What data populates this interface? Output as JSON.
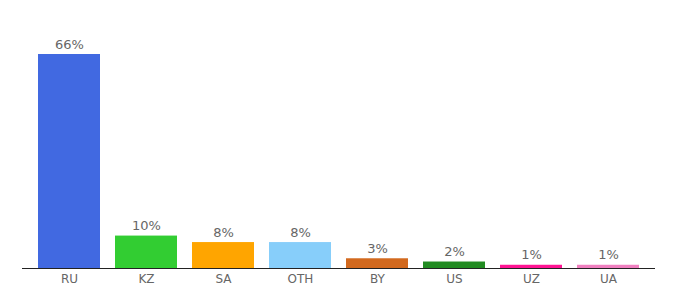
{
  "chart_data": {
    "type": "bar",
    "categories": [
      "RU",
      "KZ",
      "SA",
      "OTH",
      "BY",
      "US",
      "UZ",
      "UA"
    ],
    "values": [
      66,
      10,
      8,
      8,
      3,
      2,
      1,
      1
    ],
    "value_labels": [
      "66%",
      "10%",
      "8%",
      "8%",
      "3%",
      "2%",
      "1%",
      "1%"
    ],
    "colors": [
      "#4169e1",
      "#32cd32",
      "#ffa500",
      "#87cefa",
      "#d2691e",
      "#228b22",
      "#ff1493",
      "#f080c0"
    ],
    "ylim": [
      0,
      66
    ],
    "data_labels": true,
    "tick_labels": "x",
    "grid": false
  }
}
